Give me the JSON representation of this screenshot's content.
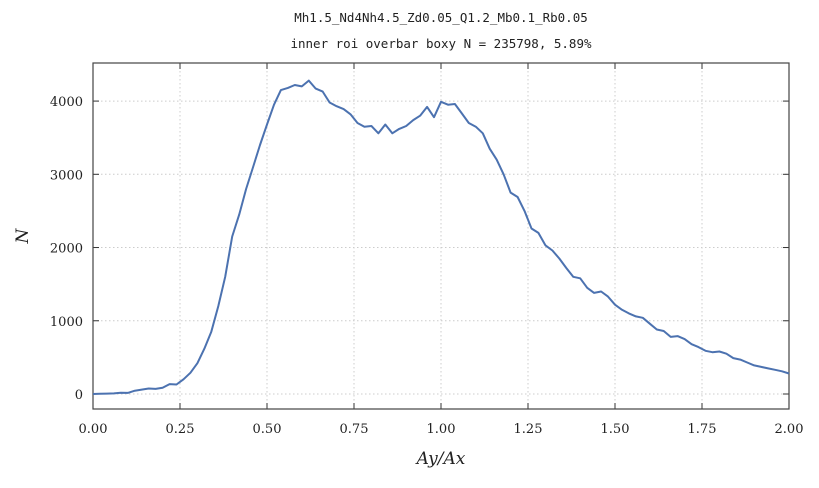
{
  "chart_data": {
    "type": "line",
    "title": "Mh1.5_Nd4Nh4.5_Zd0.05_Q1.2_Mb0.1_Rb0.05",
    "subtitle": "inner roi overbar boxy   N = 235798,   5.89%",
    "x_label": "Ay/Ax",
    "y_label": "N",
    "xlim": [
      0,
      2
    ],
    "ylim": [
      -205,
      4520
    ],
    "xticks": [
      {
        "value": 0,
        "label": "0.00"
      },
      {
        "value": 0.25,
        "label": "0.25"
      },
      {
        "value": 0.5,
        "label": "0.50"
      },
      {
        "value": 0.75,
        "label": "0.75"
      },
      {
        "value": 1,
        "label": "1.00"
      },
      {
        "value": 1.25,
        "label": "1.25"
      },
      {
        "value": 1.5,
        "label": "1.50"
      },
      {
        "value": 1.75,
        "label": "1.75"
      },
      {
        "value": 2,
        "label": "2.00"
      }
    ],
    "yticks": [
      0,
      1000,
      2000,
      3000,
      4000
    ],
    "grid": true,
    "x": [
      0,
      0.02,
      0.04,
      0.06,
      0.08,
      0.1,
      0.12,
      0.14,
      0.16,
      0.18,
      0.2,
      0.22,
      0.24,
      0.26,
      0.28,
      0.3,
      0.32,
      0.34,
      0.36,
      0.38,
      0.4,
      0.42,
      0.44,
      0.46,
      0.48,
      0.5,
      0.52,
      0.54,
      0.56,
      0.58,
      0.6,
      0.62,
      0.64,
      0.66,
      0.68,
      0.7,
      0.72,
      0.74,
      0.76,
      0.78,
      0.8,
      0.82,
      0.84,
      0.86,
      0.88,
      0.9,
      0.92,
      0.94,
      0.96,
      0.98,
      1,
      1.02,
      1.04,
      1.06,
      1.08,
      1.1,
      1.12,
      1.14,
      1.16,
      1.18,
      1.2,
      1.22,
      1.24,
      1.26,
      1.28,
      1.3,
      1.32,
      1.34,
      1.36,
      1.38,
      1.4,
      1.42,
      1.44,
      1.46,
      1.48,
      1.5,
      1.52,
      1.54,
      1.56,
      1.58,
      1.6,
      1.62,
      1.64,
      1.66,
      1.68,
      1.7,
      1.72,
      1.74,
      1.76,
      1.78,
      1.8,
      1.82,
      1.84,
      1.86,
      1.88,
      1.9,
      1.92,
      1.94,
      1.96,
      1.98,
      2
    ],
    "series": [
      {
        "color": "#4c72b0",
        "values": [
          0,
          2,
          5,
          8,
          18,
          15,
          45,
          60,
          75,
          70,
          85,
          135,
          130,
          200,
          290,
          420,
          620,
          850,
          1200,
          1600,
          2150,
          2450,
          2800,
          3100,
          3400,
          3680,
          3950,
          4150,
          4180,
          4220,
          4200,
          4280,
          4170,
          4130,
          3980,
          3930,
          3890,
          3820,
          3700,
          3650,
          3660,
          3560,
          3680,
          3560,
          3620,
          3660,
          3740,
          3800,
          3920,
          3780,
          3990,
          3950,
          3960,
          3830,
          3700,
          3650,
          3560,
          3350,
          3200,
          3000,
          2750,
          2690,
          2500,
          2260,
          2200,
          2030,
          1960,
          1850,
          1720,
          1600,
          1580,
          1450,
          1380,
          1400,
          1330,
          1220,
          1150,
          1100,
          1060,
          1040,
          960,
          880,
          860,
          780,
          790,
          750,
          680,
          640,
          590,
          570,
          580,
          550,
          490,
          470,
          430,
          390,
          370,
          350,
          330,
          310,
          280
        ]
      }
    ]
  }
}
